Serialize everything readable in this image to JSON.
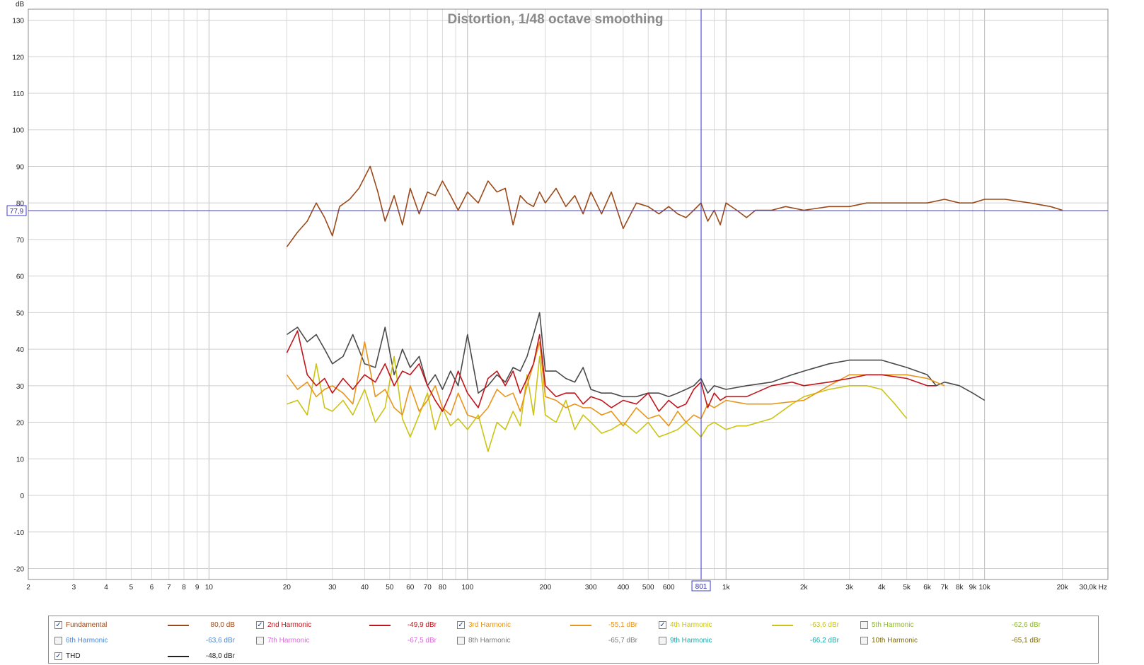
{
  "chart_data": {
    "type": "line",
    "title": "Distortion, 1/48 octave smoothing",
    "y_unit": "dB",
    "x_unit": "Hz",
    "x_scale": "log",
    "xlim": [
      2,
      30000
    ],
    "ylim": [
      -23,
      133
    ],
    "y_ticks": [
      "130",
      "120",
      "110",
      "100",
      "90",
      "80",
      "70",
      "60",
      "50",
      "40",
      "30",
      "20",
      "10",
      "0",
      "-10",
      "-20"
    ],
    "x_ticks": [
      {
        "v": 2,
        "l": "2"
      },
      {
        "v": 3,
        "l": "3"
      },
      {
        "v": 4,
        "l": "4"
      },
      {
        "v": 5,
        "l": "5"
      },
      {
        "v": 6,
        "l": "6"
      },
      {
        "v": 7,
        "l": "7"
      },
      {
        "v": 8,
        "l": "8"
      },
      {
        "v": 9,
        "l": "9"
      },
      {
        "v": 10,
        "l": "10"
      },
      {
        "v": 20,
        "l": "20"
      },
      {
        "v": 30,
        "l": "30"
      },
      {
        "v": 40,
        "l": "40"
      },
      {
        "v": 50,
        "l": "50"
      },
      {
        "v": 60,
        "l": "60"
      },
      {
        "v": 70,
        "l": "70"
      },
      {
        "v": 80,
        "l": "80"
      },
      {
        "v": 100,
        "l": "100"
      },
      {
        "v": 200,
        "l": "200"
      },
      {
        "v": 300,
        "l": "300"
      },
      {
        "v": 400,
        "l": "400"
      },
      {
        "v": 500,
        "l": "500"
      },
      {
        "v": 600,
        "l": "600"
      },
      {
        "v": 1000,
        "l": "1k"
      },
      {
        "v": 2000,
        "l": "2k"
      },
      {
        "v": 3000,
        "l": "3k"
      },
      {
        "v": 4000,
        "l": "4k"
      },
      {
        "v": 5000,
        "l": "5k"
      },
      {
        "v": 6000,
        "l": "6k"
      },
      {
        "v": 7000,
        "l": "7k"
      },
      {
        "v": 8000,
        "l": "8k"
      },
      {
        "v": 9000,
        "l": "9k"
      },
      {
        "v": 10000,
        "l": "10k"
      },
      {
        "v": 20000,
        "l": "20k"
      },
      {
        "v": 30000,
        "l": "30,0k Hz"
      }
    ],
    "cursor": {
      "x": 801,
      "x_label": "801",
      "y": 77.9,
      "y_label": "77,9"
    },
    "grid": true,
    "series": [
      {
        "name": "Fundamental",
        "color": "#9a4a1a",
        "x": [
          20,
          22,
          24,
          26,
          28,
          30,
          32,
          35,
          38,
          42,
          45,
          48,
          52,
          56,
          60,
          65,
          70,
          75,
          80,
          86,
          92,
          100,
          110,
          120,
          130,
          140,
          150,
          160,
          170,
          180,
          190,
          200,
          220,
          240,
          260,
          280,
          300,
          330,
          360,
          400,
          450,
          500,
          550,
          600,
          650,
          700,
          750,
          800,
          850,
          900,
          950,
          1000,
          1100,
          1200,
          1300,
          1500,
          1700,
          2000,
          2500,
          3000,
          3500,
          4000,
          5000,
          6000,
          7000,
          8000,
          9000,
          10000,
          12000,
          15000,
          18000,
          20000
        ],
        "y": [
          68,
          72,
          75,
          80,
          76,
          71,
          79,
          81,
          84,
          90,
          83,
          75,
          82,
          74,
          84,
          77,
          83,
          82,
          86,
          82,
          78,
          83,
          80,
          86,
          83,
          84,
          74,
          82,
          80,
          79,
          83,
          80,
          84,
          79,
          82,
          77,
          83,
          77,
          83,
          73,
          80,
          79,
          77,
          79,
          77,
          76,
          78,
          80,
          75,
          78,
          74,
          80,
          78,
          76,
          78,
          78,
          79,
          78,
          79,
          79,
          80,
          80,
          80,
          80,
          81,
          80,
          80,
          81,
          81,
          80,
          79,
          78
        ]
      },
      {
        "name": "2nd Harmonic",
        "color": "#c0151b",
        "x": [
          20,
          22,
          24,
          26,
          28,
          30,
          33,
          36,
          40,
          44,
          48,
          52,
          56,
          60,
          65,
          70,
          75,
          80,
          86,
          92,
          100,
          110,
          120,
          130,
          140,
          150,
          160,
          170,
          180,
          190,
          200,
          220,
          240,
          260,
          280,
          300,
          330,
          360,
          400,
          450,
          500,
          550,
          600,
          650,
          700,
          750,
          800,
          850,
          900,
          950,
          1000,
          1200,
          1500,
          1800,
          2000,
          2500,
          3000,
          3500,
          4000,
          5000,
          6000,
          6500
        ],
        "y": [
          39,
          45,
          33,
          30,
          32,
          28,
          32,
          29,
          33,
          31,
          36,
          30,
          34,
          33,
          36,
          30,
          26,
          23,
          28,
          34,
          28,
          24,
          32,
          34,
          30,
          34,
          28,
          32,
          36,
          44,
          30,
          27,
          28,
          28,
          25,
          27,
          26,
          24,
          26,
          25,
          28,
          23,
          26,
          24,
          25,
          29,
          31,
          24,
          28,
          26,
          27,
          27,
          30,
          31,
          30,
          31,
          32,
          33,
          33,
          32,
          30,
          30
        ]
      },
      {
        "name": "3rd Harmonic",
        "color": "#e8951a",
        "x": [
          20,
          22,
          24,
          26,
          28,
          30,
          33,
          36,
          40,
          44,
          48,
          52,
          56,
          60,
          65,
          70,
          75,
          80,
          86,
          92,
          100,
          110,
          120,
          130,
          140,
          150,
          160,
          170,
          180,
          190,
          200,
          220,
          240,
          260,
          280,
          300,
          330,
          360,
          400,
          450,
          500,
          550,
          600,
          650,
          700,
          750,
          800,
          850,
          900,
          1000,
          1200,
          1500,
          2000,
          2500,
          3000,
          3500,
          4000,
          5000,
          6000,
          7000
        ],
        "y": [
          33,
          29,
          31,
          27,
          29,
          30,
          28,
          25,
          42,
          27,
          29,
          24,
          22,
          30,
          23,
          26,
          30,
          24,
          22,
          28,
          22,
          21,
          24,
          29,
          27,
          28,
          23,
          30,
          36,
          42,
          27,
          26,
          24,
          25,
          24,
          24,
          22,
          23,
          19,
          24,
          21,
          22,
          19,
          23,
          20,
          22,
          21,
          25,
          24,
          26,
          25,
          25,
          26,
          30,
          33,
          33,
          33,
          33,
          32,
          30
        ]
      },
      {
        "name": "4th Harmonic",
        "color": "#cbc414",
        "x": [
          20,
          22,
          24,
          26,
          28,
          30,
          33,
          36,
          40,
          44,
          48,
          52,
          56,
          60,
          65,
          70,
          75,
          80,
          86,
          92,
          100,
          110,
          120,
          130,
          140,
          150,
          160,
          170,
          180,
          190,
          200,
          220,
          240,
          260,
          280,
          300,
          330,
          360,
          400,
          450,
          500,
          550,
          600,
          650,
          700,
          750,
          800,
          850,
          900,
          1000,
          1100,
          1200,
          1500,
          1800,
          2000,
          2500,
          3000,
          3500,
          4000,
          4500,
          5000
        ],
        "y": [
          25,
          26,
          22,
          36,
          24,
          23,
          26,
          22,
          29,
          20,
          24,
          38,
          21,
          16,
          22,
          28,
          18,
          24,
          19,
          21,
          18,
          22,
          12,
          20,
          18,
          23,
          19,
          33,
          22,
          38,
          22,
          20,
          26,
          18,
          22,
          20,
          17,
          18,
          20,
          17,
          20,
          16,
          17,
          18,
          20,
          18,
          16,
          19,
          20,
          18,
          19,
          19,
          21,
          25,
          27,
          29,
          30,
          30,
          29,
          25,
          21
        ]
      },
      {
        "name": "THD",
        "color": "#4a4a4a",
        "x": [
          20,
          22,
          24,
          26,
          28,
          30,
          33,
          36,
          40,
          44,
          48,
          52,
          56,
          60,
          65,
          70,
          75,
          80,
          86,
          92,
          100,
          110,
          120,
          130,
          140,
          150,
          160,
          170,
          180,
          190,
          200,
          220,
          240,
          260,
          280,
          300,
          330,
          360,
          400,
          450,
          500,
          550,
          600,
          650,
          700,
          750,
          800,
          850,
          900,
          1000,
          1200,
          1500,
          1800,
          2000,
          2500,
          3000,
          3500,
          4000,
          5000,
          6000,
          6500,
          7000,
          8000,
          9000,
          10000
        ],
        "y": [
          44,
          46,
          42,
          44,
          40,
          36,
          38,
          44,
          36,
          35,
          46,
          33,
          40,
          35,
          38,
          30,
          33,
          29,
          34,
          30,
          44,
          28,
          30,
          33,
          31,
          35,
          34,
          38,
          44,
          50,
          34,
          34,
          32,
          31,
          35,
          29,
          28,
          28,
          27,
          27,
          28,
          28,
          27,
          28,
          29,
          30,
          32,
          28,
          30,
          29,
          30,
          31,
          33,
          34,
          36,
          37,
          37,
          37,
          35,
          33,
          30,
          31,
          30,
          28,
          26
        ]
      }
    ]
  },
  "legend": {
    "items": [
      {
        "label": "Fundamental",
        "value": "80,0 dB",
        "color": "#9a4a1a",
        "checked": true,
        "line": true,
        "text_color": "#9a4a1a"
      },
      {
        "label": "2nd Harmonic",
        "value": "-49,9 dBr",
        "color": "#c0151b",
        "checked": true,
        "line": true,
        "text_color": "#c0151b"
      },
      {
        "label": "3rd Harmonic",
        "value": "-55,1 dBr",
        "color": "#e8951a",
        "checked": true,
        "line": true,
        "text_color": "#e8951a"
      },
      {
        "label": "4th Harmonic",
        "value": "-63,6 dBr",
        "color": "#cbc414",
        "checked": true,
        "line": true,
        "text_color": "#cbc414"
      },
      {
        "label": "5th Harmonic",
        "value": "-62,6 dBr",
        "color": "#9bc13a",
        "checked": false,
        "line": false,
        "text_color": "#8fb82e"
      },
      {
        "label": "6th Harmonic",
        "value": "-63,6 dBr",
        "color": "#4a86d8",
        "checked": false,
        "line": false,
        "text_color": "#4a86d8"
      },
      {
        "label": "7th Harmonic",
        "value": "-67,5 dBr",
        "color": "#d86ad8",
        "checked": false,
        "line": false,
        "text_color": "#d86ad8"
      },
      {
        "label": "8th Harmonic",
        "value": "-65,7 dBr",
        "color": "#8a8a8a",
        "checked": false,
        "line": false,
        "text_color": "#7a7a7a"
      },
      {
        "label": "9th Harmonic",
        "value": "-66,2 dBr",
        "color": "#1ab0b0",
        "checked": false,
        "line": false,
        "text_color": "#18a8a8"
      },
      {
        "label": "10th Harmonic",
        "value": "-65,1 dBr",
        "color": "#8a7a10",
        "checked": false,
        "line": false,
        "text_color": "#7a6a10"
      },
      {
        "label": "THD",
        "value": "-48,0 dBr",
        "color": "#222222",
        "checked": true,
        "line": true,
        "text_color": "#222222"
      }
    ]
  }
}
